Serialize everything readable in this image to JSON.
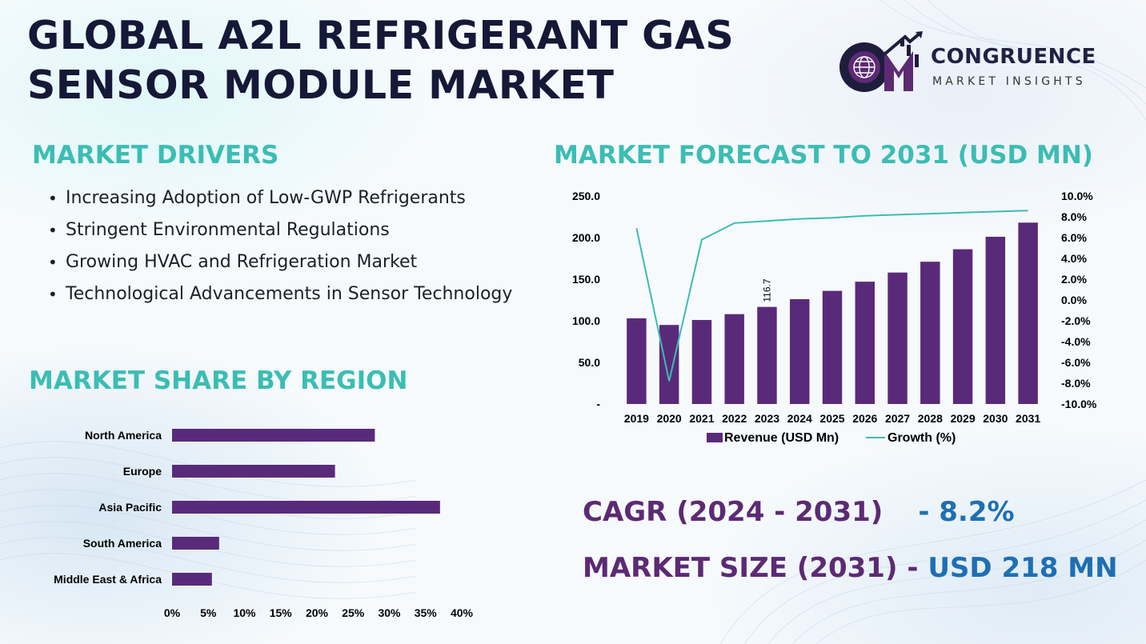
{
  "header": {
    "title_line1": "GLOBAL A2L REFRIGERANT GAS",
    "title_line2": "SENSOR MODULE MARKET"
  },
  "logo": {
    "name": "CONGRUENCE",
    "subtitle": "MARKET INSIGHTS",
    "icon": "cmi-globe-logo"
  },
  "drivers": {
    "heading": "MARKET DRIVERS",
    "items": [
      "Increasing Adoption of Low-GWP Refrigerants",
      "Stringent Environmental Regulations",
      "Growing HVAC and Refrigeration Market",
      "Technological Advancements in Sensor Technology"
    ]
  },
  "region": {
    "heading": "MARKET SHARE BY REGION"
  },
  "forecast": {
    "heading": "MARKET FORECAST TO 2031 (USD MN)"
  },
  "summary": {
    "cagr_label": "CAGR (2024 - 2031)",
    "cagr_value": "- 8.2%",
    "size_label": "MARKET SIZE (2031)",
    "size_sep": "-",
    "size_value": "USD 218 MN"
  },
  "colors": {
    "bar": "#5a2a7a",
    "line": "#3bbdb4",
    "heading": "#3bbdb4",
    "title": "#151937",
    "accent_purple": "#5c2a73",
    "accent_blue": "#1f6fb2"
  },
  "chart_data": [
    {
      "type": "bar",
      "orientation": "horizontal",
      "categories": [
        "North America",
        "Europe",
        "Asia Pacific",
        "South America",
        "Middle East & Africa"
      ],
      "values": [
        28,
        22.5,
        37,
        6.5,
        5.5
      ],
      "xticks": [
        "0%",
        "5%",
        "10%",
        "15%",
        "20%",
        "25%",
        "30%",
        "35%",
        "40%"
      ],
      "xlim": [
        0,
        40
      ],
      "unit": "%",
      "grid": false,
      "legend": "none"
    },
    {
      "type": "bar",
      "combo": "bar-line",
      "categories": [
        "2019",
        "2020",
        "2021",
        "2022",
        "2023",
        "2024",
        "2025",
        "2026",
        "2027",
        "2028",
        "2029",
        "2030",
        "2031"
      ],
      "series": [
        {
          "name": "Revenue (USD Mn)",
          "type": "bar",
          "axis": "left",
          "values": [
            103,
            95,
            101,
            108,
            116.7,
            126,
            136,
            147,
            158,
            171,
            186,
            201,
            218
          ]
        },
        {
          "name": "Growth (%)",
          "type": "line",
          "axis": "right",
          "values": [
            6.9,
            -7.8,
            5.8,
            7.4,
            7.6,
            7.8,
            7.9,
            8.1,
            8.2,
            8.3,
            8.4,
            8.5,
            8.6
          ]
        }
      ],
      "data_labels": [
        {
          "category": "2023",
          "text": "116.7"
        }
      ],
      "y_left_ticks": [
        "-",
        "50.0",
        "100.0",
        "150.0",
        "200.0",
        "250.0"
      ],
      "ylim_left": [
        0,
        250
      ],
      "y_right_ticks": [
        "-10.0%",
        "-8.0%",
        "-6.0%",
        "-4.0%",
        "-2.0%",
        "0.0%",
        "2.0%",
        "4.0%",
        "6.0%",
        "8.0%",
        "10.0%"
      ],
      "ylim_right": [
        -10,
        10
      ],
      "grid": false,
      "legend": "bottom"
    }
  ]
}
